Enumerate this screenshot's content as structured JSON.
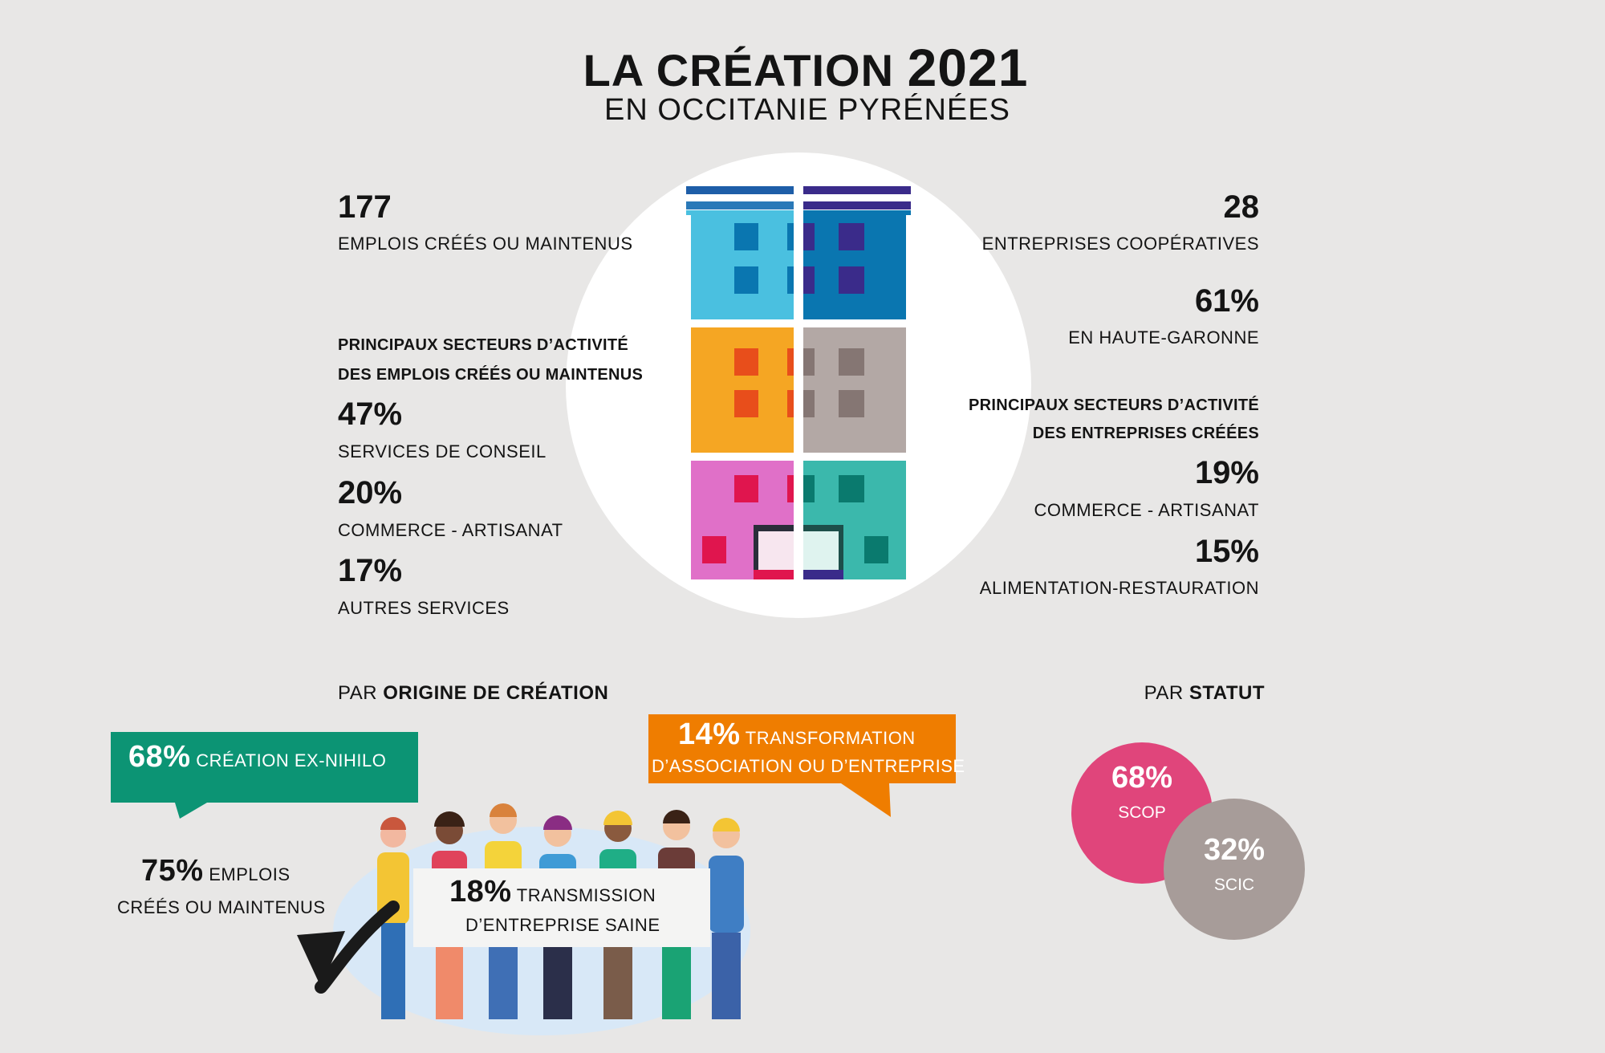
{
  "header": {
    "title_main": "LA CRÉATION",
    "title_year": "2021",
    "subtitle": "EN OCCITANIE PYRÉNÉES"
  },
  "left": {
    "emplois_value": "177",
    "emplois_label": "EMPLOIS CRÉÉS OU MAINTENUS",
    "sectors_heading_1": "PRINCIPAUX SECTEURS D’ACTIVITÉ",
    "sectors_heading_2": "DES EMPLOIS CRÉÉS OU MAINTENUS",
    "sectors": [
      {
        "value": "47%",
        "label": "SERVICES DE CONSEIL"
      },
      {
        "value": "20%",
        "label": "COMMERCE - ARTISANAT"
      },
      {
        "value": "17%",
        "label": "AUTRES SERVICES"
      }
    ]
  },
  "right": {
    "entreprises_value": "28",
    "entreprises_label": "ENTREPRISES COOPÉRATIVES",
    "haute_value": "61%",
    "haute_label": "EN HAUTE-GARONNE",
    "sectors_heading_1": "PRINCIPAUX SECTEURS D’ACTIVITÉ",
    "sectors_heading_2": "DES ENTREPRISES CRÉÉES",
    "sectors": [
      {
        "value": "19%",
        "label": "COMMERCE - ARTISANAT"
      },
      {
        "value": "15%",
        "label": "ALIMENTATION-RESTAURATION"
      }
    ]
  },
  "origine": {
    "heading_prefix": "PAR",
    "heading_bold": "ORIGINE DE CRÉATION",
    "exnihilo_value": "68%",
    "exnihilo_label": "CRÉATION EX-NIHILO",
    "transfo_value": "14%",
    "transfo_label_1": "TRANSFORMATION",
    "transfo_label_2": "D’ASSOCIATION OU D’ENTREPRISE",
    "transmission_value": "18%",
    "transmission_label_1": "TRANSMISSION",
    "transmission_label_2": "D’ENTREPRISE SAINE",
    "emplois_value": "75%",
    "emplois_label_1": "EMPLOIS",
    "emplois_label_2": "CRÉÉS OU MAINTENUS"
  },
  "statut": {
    "heading_prefix": "PAR",
    "heading_bold": "STATUT",
    "scop_value": "68%",
    "scop_label": "SCOP",
    "scic_value": "32%",
    "scic_label": "SCIC"
  },
  "colors": {
    "background": "#e8e7e6",
    "green": "#0c9474",
    "orange": "#ef7d00",
    "scop": "#e0457b",
    "scic": "#a79c99"
  }
}
